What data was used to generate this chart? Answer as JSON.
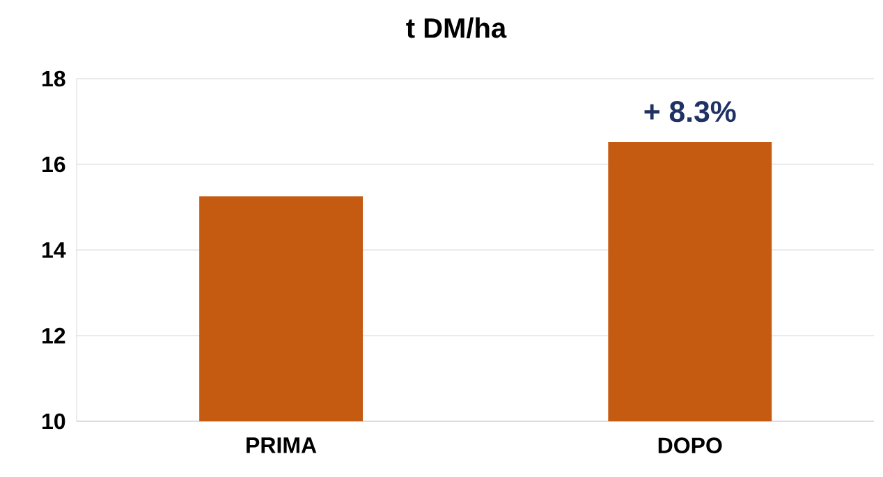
{
  "chart_data": {
    "type": "bar",
    "title": "t DM/ha",
    "categories": [
      "PRIMA",
      "DOPO"
    ],
    "values": [
      15.25,
      16.52
    ],
    "color": "#c55a11",
    "ylim": [
      10,
      18
    ],
    "yticks": [
      10,
      12,
      14,
      16,
      18
    ],
    "grid": "y",
    "annotations": [
      "+ 8.3%"
    ]
  }
}
